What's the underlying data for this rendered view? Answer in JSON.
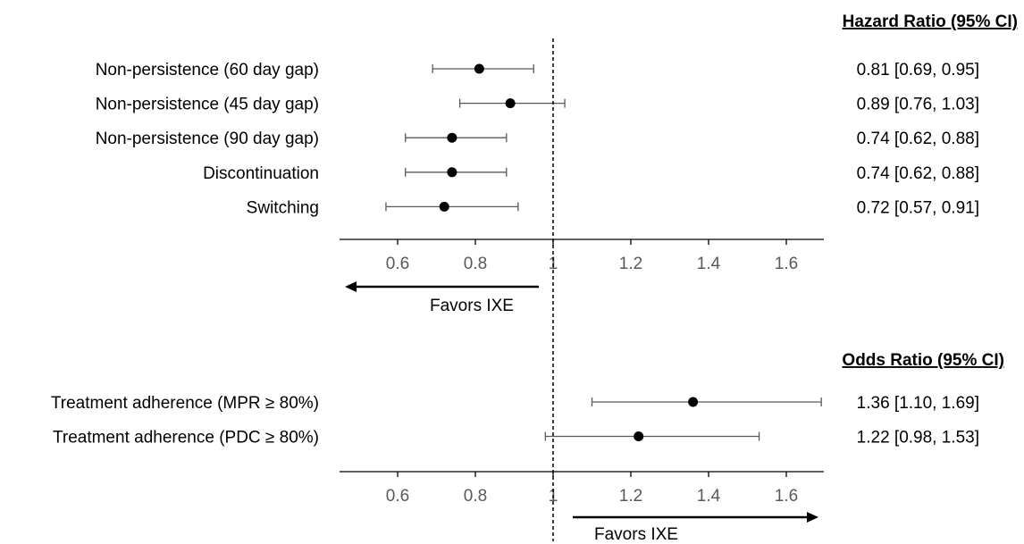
{
  "chart_data": [
    {
      "type": "forest",
      "title": "Hazard Ratio (95% CI)",
      "xlim": [
        0.46,
        1.7
      ],
      "ticks": [
        0.6,
        0.8,
        1,
        1.2,
        1.4,
        1.6
      ],
      "tick_labels": [
        "0.6",
        "0.8",
        "1",
        "1.2",
        "1.4",
        "1.6"
      ],
      "reference_line": 1,
      "favors_label": "Favors IXE",
      "favors_direction": "left",
      "rows": [
        {
          "label": "Non-persistence (60 day gap)",
          "estimate": 0.81,
          "lower": 0.69,
          "upper": 0.95,
          "ci_text": "0.81 [0.69, 0.95]"
        },
        {
          "label": "Non-persistence (45 day gap)",
          "estimate": 0.89,
          "lower": 0.76,
          "upper": 1.03,
          "ci_text": "0.89 [0.76, 1.03]"
        },
        {
          "label": "Non-persistence (90 day gap)",
          "estimate": 0.74,
          "lower": 0.62,
          "upper": 0.88,
          "ci_text": "0.74 [0.62, 0.88]"
        },
        {
          "label": "Discontinuation",
          "estimate": 0.74,
          "lower": 0.62,
          "upper": 0.88,
          "ci_text": "0.74 [0.62, 0.88]"
        },
        {
          "label": "Switching",
          "estimate": 0.72,
          "lower": 0.57,
          "upper": 0.91,
          "ci_text": "0.72 [0.57, 0.91]"
        }
      ]
    },
    {
      "type": "forest",
      "title": "Odds Ratio (95% CI)",
      "xlim": [
        0.46,
        1.7
      ],
      "ticks": [
        0.6,
        0.8,
        1,
        1.2,
        1.4,
        1.6
      ],
      "tick_labels": [
        "0.6",
        "0.8",
        "1",
        "1.2",
        "1.4",
        "1.6"
      ],
      "reference_line": 1,
      "favors_label": "Favors IXE",
      "favors_direction": "right",
      "rows": [
        {
          "label": "Treatment adherence (MPR ≥ 80%)",
          "estimate": 1.36,
          "lower": 1.1,
          "upper": 1.69,
          "ci_text": "1.36 [1.10, 1.69]"
        },
        {
          "label": "Treatment adherence (PDC ≥ 80%)",
          "estimate": 1.22,
          "lower": 0.98,
          "upper": 1.53,
          "ci_text": "1.22 [0.98, 1.53]"
        }
      ]
    }
  ],
  "colors": {
    "ink": "#000000",
    "tick_text": "#595959",
    "ci_line": "#595959",
    "background": "#ffffff"
  }
}
